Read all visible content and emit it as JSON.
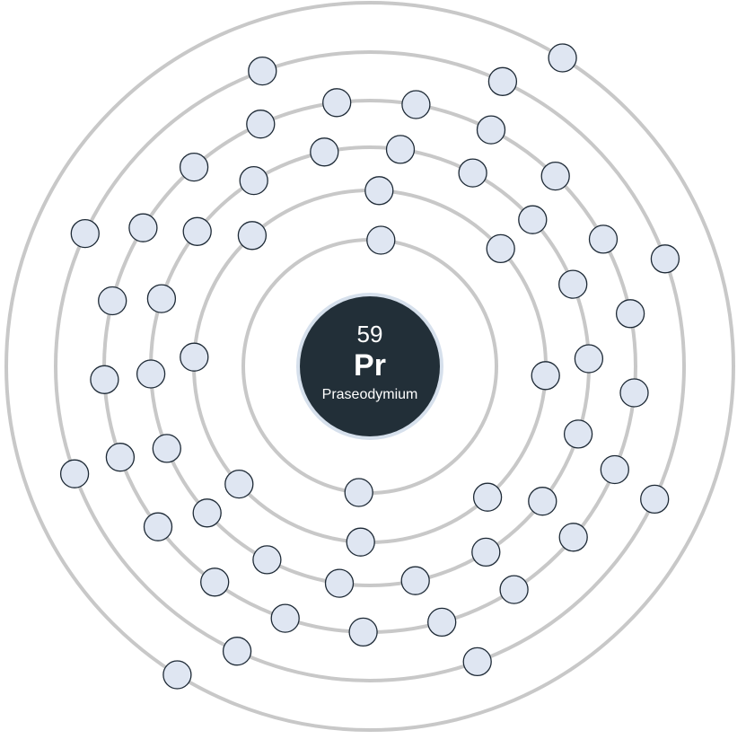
{
  "element": {
    "atomic_number": "59",
    "symbol": "Pr",
    "name": "Praseodymium"
  },
  "shells": [
    {
      "shell": 1,
      "electrons": 2
    },
    {
      "shell": 2,
      "electrons": 8
    },
    {
      "shell": 3,
      "electrons": 18
    },
    {
      "shell": 4,
      "electrons": 21
    },
    {
      "shell": 5,
      "electrons": 8
    },
    {
      "shell": 6,
      "electrons": 2
    }
  ],
  "colors": {
    "shell": "#c8c8c8",
    "electron_fill": "#dfe6f2",
    "electron_stroke": "#1e2a36",
    "nucleus": "#222f38",
    "nucleus_ring": "#d6e0ec",
    "text": "#ffffff"
  }
}
